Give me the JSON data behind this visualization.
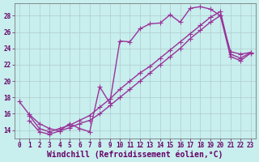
{
  "xlabel": "Windchill (Refroidissement éolien,°C)",
  "xlim": [
    -0.5,
    23.5
  ],
  "ylim": [
    13.0,
    29.5
  ],
  "xticks": [
    0,
    1,
    2,
    3,
    4,
    5,
    6,
    7,
    8,
    9,
    10,
    11,
    12,
    13,
    14,
    15,
    16,
    17,
    18,
    19,
    20,
    21,
    22,
    23
  ],
  "yticks": [
    14,
    16,
    18,
    20,
    22,
    24,
    26,
    28
  ],
  "background_color": "#c8eeee",
  "grid_color": "#b0cccc",
  "line_color": "#993399",
  "line1_x": [
    0,
    1,
    2,
    3,
    4,
    5,
    6,
    7,
    8,
    9,
    10,
    11,
    12,
    13,
    14,
    15,
    16,
    17,
    18,
    19,
    20,
    21,
    22,
    23
  ],
  "line1_y": [
    17.5,
    15.9,
    14.8,
    14.2,
    13.9,
    14.8,
    14.2,
    13.8,
    19.3,
    17.3,
    24.9,
    24.8,
    26.4,
    27.0,
    27.1,
    28.1,
    27.2,
    28.9,
    29.1,
    28.8,
    28.0,
    23.6,
    23.3,
    23.5
  ],
  "line2_x": [
    1,
    2,
    3,
    4,
    5,
    6,
    7,
    8,
    9,
    10,
    11,
    12,
    13,
    14,
    15,
    16,
    17,
    18,
    19,
    20,
    21,
    22,
    23
  ],
  "line2_y": [
    15.8,
    14.2,
    13.8,
    14.2,
    14.6,
    15.2,
    15.8,
    16.8,
    17.8,
    19.0,
    20.0,
    21.0,
    21.8,
    22.8,
    23.8,
    24.8,
    25.8,
    26.8,
    27.8,
    28.5,
    23.3,
    22.8,
    23.5
  ],
  "line3_x": [
    1,
    2,
    3,
    4,
    5,
    6,
    7,
    8,
    9,
    10,
    11,
    12,
    13,
    14,
    15,
    16,
    17,
    18,
    19,
    20,
    21,
    22,
    23
  ],
  "line3_y": [
    15.2,
    13.8,
    13.5,
    13.9,
    14.3,
    14.8,
    15.2,
    16.0,
    17.0,
    18.0,
    19.0,
    20.0,
    21.0,
    22.0,
    23.0,
    24.0,
    25.2,
    26.2,
    27.2,
    28.0,
    23.0,
    22.5,
    23.4
  ],
  "line_width": 1.0,
  "marker": "+",
  "marker_size": 4,
  "font_color": "#660066",
  "tick_fontsize": 5.5,
  "xlabel_fontsize": 7.0
}
